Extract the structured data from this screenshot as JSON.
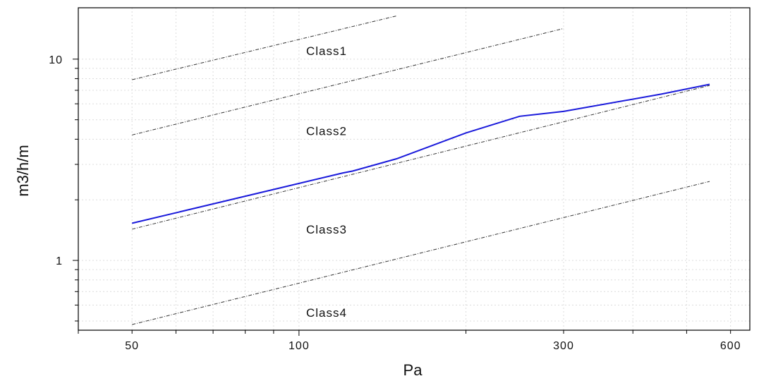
{
  "chart_data": {
    "type": "line",
    "title": "",
    "xlabel": "Pa",
    "ylabel": "m3/h/m",
    "x_scale": "log",
    "y_scale": "log",
    "xlim": [
      40,
      650
    ],
    "ylim": [
      0.45,
      18
    ],
    "x_ticks": [
      {
        "value": 50,
        "label": "50"
      },
      {
        "value": 100,
        "label": "100"
      },
      {
        "value": 300,
        "label": "300"
      },
      {
        "value": 600,
        "label": "600"
      }
    ],
    "y_ticks": [
      {
        "value": 1,
        "label": "1"
      },
      {
        "value": 10,
        "label": "10"
      }
    ],
    "grid": true,
    "series": [
      {
        "color": "#1a1adb",
        "style": "solid",
        "x": [
          50,
          120,
          125,
          150,
          200,
          250,
          300,
          450,
          550
        ],
        "y": [
          1.53,
          2.72,
          2.78,
          3.2,
          4.3,
          5.2,
          5.5,
          6.7,
          7.5
        ]
      },
      {
        "color": "#333333",
        "style": "dashdot",
        "x": [
          50,
          150
        ],
        "y": [
          7.9,
          16.4
        ]
      },
      {
        "color": "#333333",
        "style": "dashdot",
        "x": [
          50,
          300
        ],
        "y": [
          4.2,
          14.2
        ]
      },
      {
        "color": "#333333",
        "style": "dashdot",
        "x": [
          50,
          550
        ],
        "y": [
          1.43,
          7.4
        ]
      },
      {
        "color": "#333333",
        "style": "dashdot",
        "x": [
          50,
          550
        ],
        "y": [
          0.48,
          2.47
        ]
      }
    ],
    "annotations": [
      {
        "text": "Class1",
        "x": 103,
        "y": 11.0
      },
      {
        "text": "Class2",
        "x": 103,
        "y": 4.4
      },
      {
        "text": "Class3",
        "x": 103,
        "y": 1.43
      },
      {
        "text": "Class4",
        "x": 103,
        "y": 0.55
      }
    ]
  }
}
